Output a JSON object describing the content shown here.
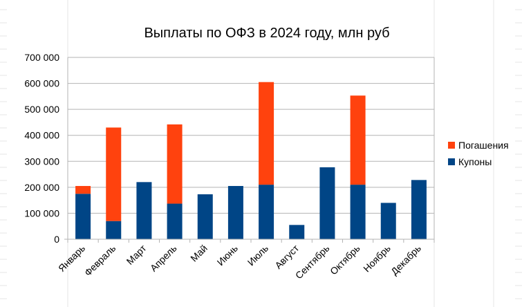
{
  "chart_data": {
    "type": "bar",
    "stacked": true,
    "title": "Выплаты по ОФЗ в 2024 году, млн руб",
    "xlabel": "",
    "ylabel": "",
    "categories": [
      "Январь",
      "Февраль",
      "Март",
      "Апрель",
      "Май",
      "Июнь",
      "Июль",
      "Август",
      "Сентябрь",
      "Октябрь",
      "Ноябрь",
      "Декабрь"
    ],
    "ylim": [
      0,
      700000
    ],
    "yticks": [
      0,
      100000,
      200000,
      300000,
      400000,
      500000,
      600000,
      700000
    ],
    "ytick_labels": [
      "0",
      "100 000",
      "200 000",
      "300 000",
      "400 000",
      "500 000",
      "600 000",
      "700 000"
    ],
    "grid": true,
    "legend_position": "right",
    "series": [
      {
        "name": "Купоны",
        "color": "#004586",
        "values": [
          175000,
          70000,
          220000,
          137000,
          173000,
          205000,
          210000,
          55000,
          277000,
          210000,
          140000,
          228000
        ]
      },
      {
        "name": "Погашения",
        "color": "#ff420e",
        "values": [
          30000,
          360000,
          0,
          305000,
          0,
          0,
          395000,
          0,
          0,
          343000,
          0,
          0
        ]
      }
    ],
    "legend_order": [
      "Погашения",
      "Купоны"
    ]
  }
}
